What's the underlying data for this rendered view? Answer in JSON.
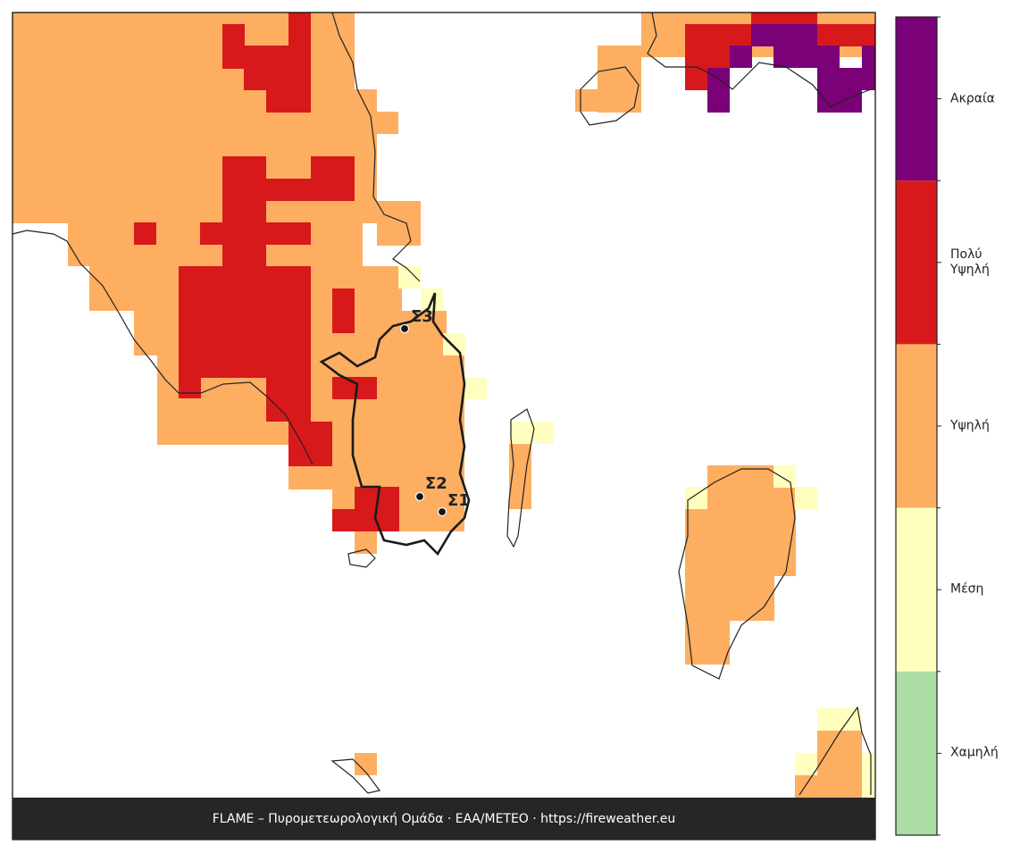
{
  "map": {
    "legend": [
      {
        "label": "Ακραία",
        "color": "#7a0177"
      },
      {
        "label": "Πολύ\nΥψηλή",
        "color": "#d7191c"
      },
      {
        "label": "Υψηλή",
        "color": "#fdae61"
      },
      {
        "label": "Μέση",
        "color": "#ffffbf"
      },
      {
        "label": "Χαμηλή",
        "color": "#abdda4"
      }
    ],
    "markers": [
      {
        "label": "Σ3"
      },
      {
        "label": "Σ2"
      },
      {
        "label": "Σ1"
      }
    ],
    "footer": "FLAME – Πυρομετεωρολογική Ομάδα · ΕΑΑ/METEO · https://fireweather.eu"
  }
}
